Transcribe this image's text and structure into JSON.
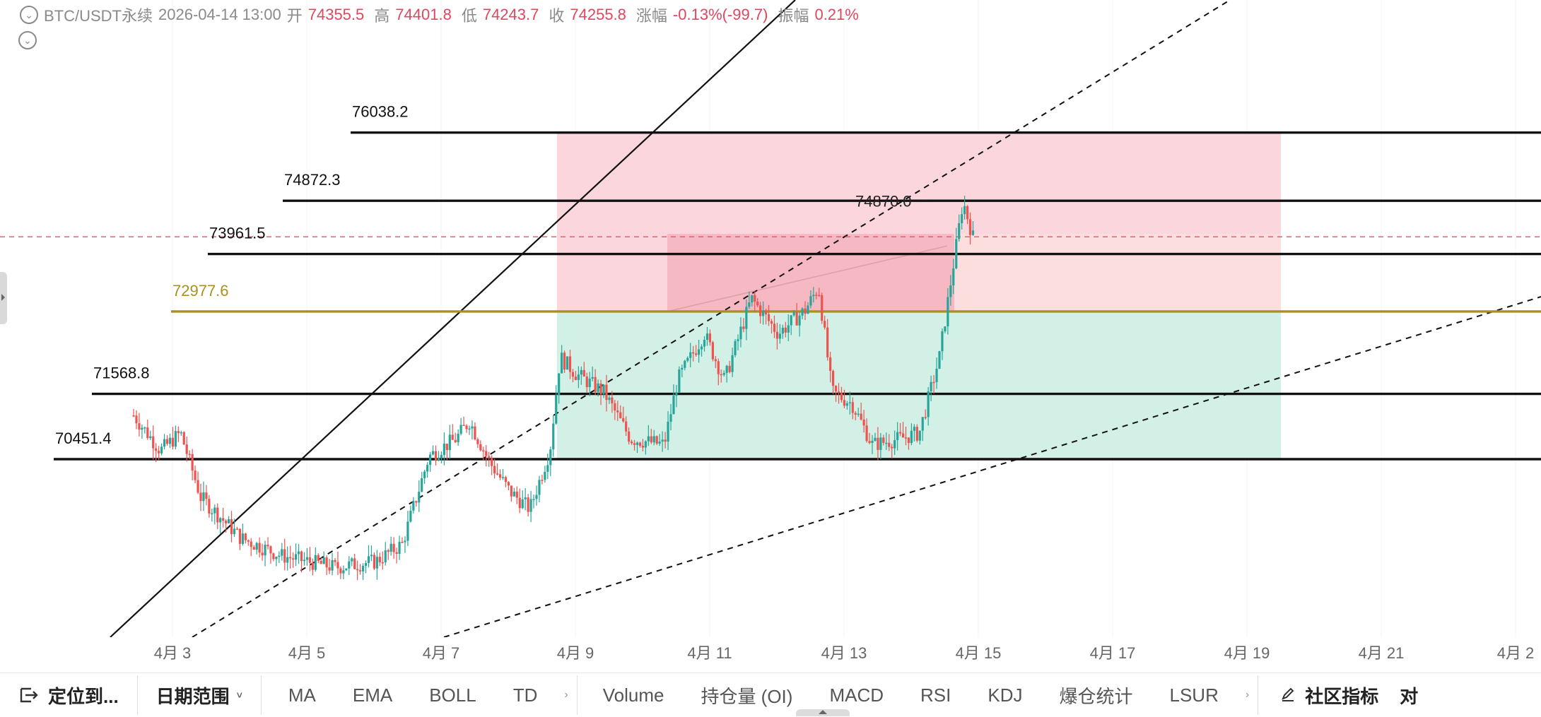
{
  "header": {
    "symbol": "BTC/USDT永续",
    "datetime": "2026-04-14 13:00",
    "open_label": "开",
    "open": "74355.5",
    "high_label": "高",
    "high": "74401.8",
    "low_label": "低",
    "low": "74243.7",
    "close_label": "收",
    "close": "74255.8",
    "change_label": "涨幅",
    "change": "-0.13%(-99.7)",
    "amplitude_label": "振幅",
    "amplitude": "0.21%"
  },
  "colors": {
    "up": "#26a69a",
    "down": "#ef5350",
    "zone_red": "#fbd6dc",
    "zone_red_dark": "#f5b5bf",
    "zone_green": "#d3f0e7",
    "gold_line": "#a8911c",
    "dashed_price": "#e06070"
  },
  "levels": [
    {
      "label": "76038.2",
      "value": 76038.2,
      "color": "#111111"
    },
    {
      "label": "74872.3",
      "value": 74872.3,
      "color": "#111111"
    },
    {
      "label": "73961.5",
      "value": 73961.5,
      "color": "#111111"
    },
    {
      "label": "72977.6",
      "value": 72977.6,
      "color": "#a8911c"
    },
    {
      "label": "71568.8",
      "value": 71568.8,
      "color": "#111111"
    },
    {
      "label": "70451.4",
      "value": 70451.4,
      "color": "#111111"
    }
  ],
  "high_marker": {
    "label": "74870.0",
    "value": 74870.0
  },
  "current_price": 74255.8,
  "x_axis": {
    "labels": [
      "4月 3",
      "4月 5",
      "4月 7",
      "4月 9",
      "4月 11",
      "4月 13",
      "4月 15",
      "4月 17",
      "4月 19",
      "4月 21",
      "4月 2"
    ]
  },
  "toolbar": {
    "locate": "定位到...",
    "date_range": "日期范围",
    "ma": "MA",
    "ema": "EMA",
    "boll": "BOLL",
    "td": "TD",
    "volume": "Volume",
    "oi": "持仓量 (OI)",
    "macd": "MACD",
    "rsi": "RSI",
    "kdj": "KDJ",
    "liq": "爆仓统计",
    "lsur": "LSUR",
    "community": "社区指标",
    "compare": "对"
  }
}
